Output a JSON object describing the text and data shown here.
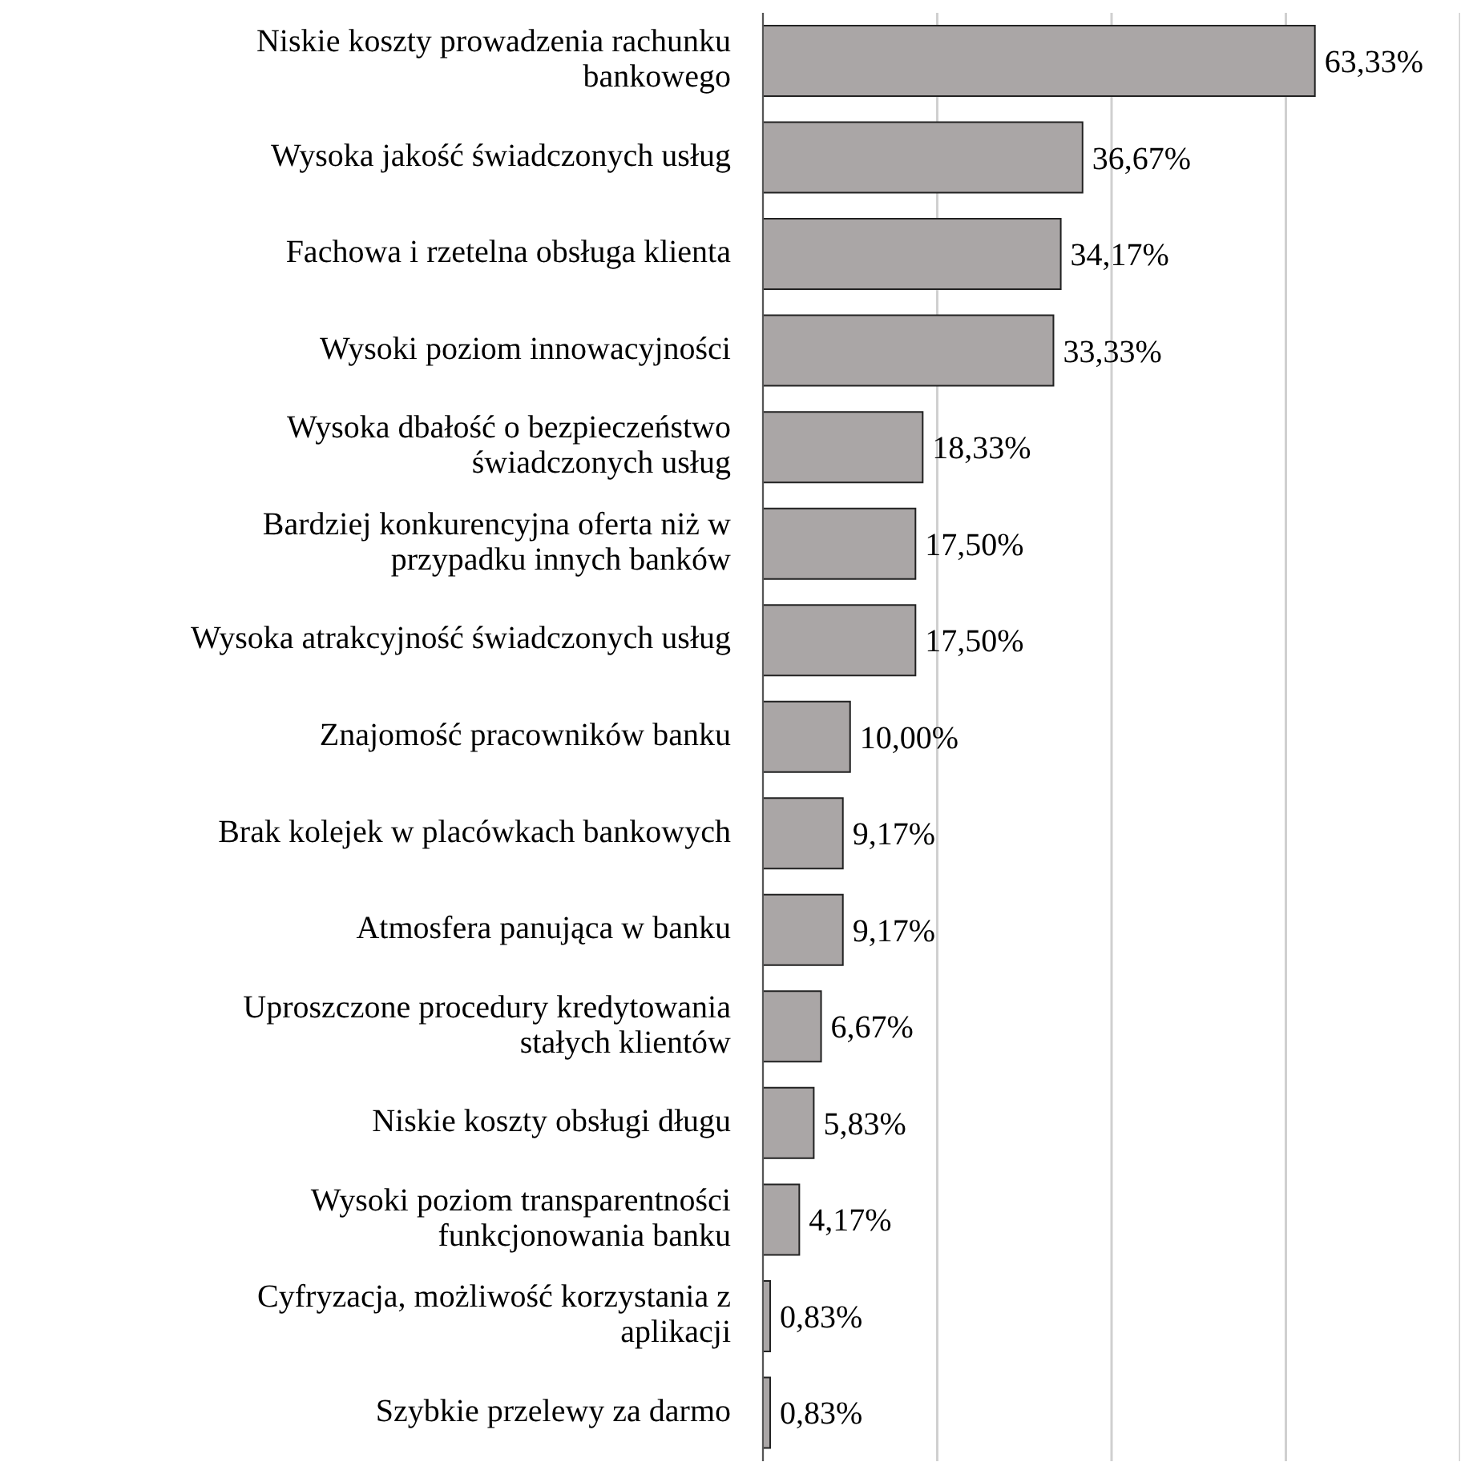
{
  "chart_data": {
    "type": "bar",
    "orientation": "horizontal",
    "categories": [
      "Niskie koszty prowadzenia rachunku bankowego",
      "Wysoka jakość świadczonych usług",
      "Fachowa i rzetelna obsługa klienta",
      "Wysoki poziom innowacyjności",
      "Wysoka dbałość o bezpieczeństwo świadczonych usług",
      "Bardziej konkurencyjna oferta niż w przypadku innych banków",
      "Wysoka atrakcyjność świadczonych usług",
      "Znajomość pracowników banku",
      "Brak kolejek w placówkach bankowych",
      "Atmosfera panująca w banku",
      "Uproszczone procedury kredytowania stałych klientów",
      "Niskie koszty obsługi długu",
      "Wysoki poziom transparentności funkcjonowania banku",
      "Cyfryzacja, możliwość korzystania z aplikacji",
      "Szybkie przelewy za darmo"
    ],
    "values": [
      63.33,
      36.67,
      34.17,
      33.33,
      18.33,
      17.5,
      17.5,
      10,
      9.17,
      9.17,
      6.67,
      5.83,
      4.17,
      0.83,
      0.83
    ],
    "value_labels": [
      "63,33%",
      "36,67%",
      "34,17%",
      "33,33%",
      "18,33%",
      "17,50%",
      "17,50%",
      "10,00%",
      "9,17%",
      "9,17%",
      "6,67%",
      "5,83%",
      "4,17%",
      "0,83%",
      "0,83%"
    ],
    "color": "#aaa6a6",
    "xlim": [
      0,
      80
    ],
    "grid": "x",
    "tick_labels": "y"
  }
}
